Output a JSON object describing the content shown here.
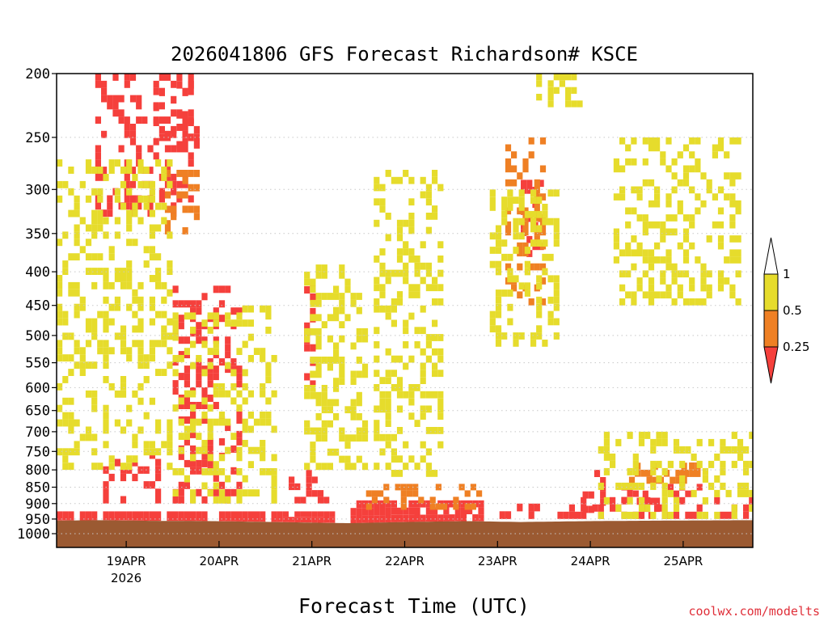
{
  "chart_data": {
    "type": "heatmap",
    "title": "2026041806 GFS Forecast Richardson# KSCE",
    "xlabel": "Forecast Time (UTC)",
    "ylabel": "",
    "credit": "coolwx.com/modelts",
    "y_axis": {
      "scale": "log-pressure",
      "reversed": true,
      "ylim": [
        1000,
        200
      ],
      "ticks": [
        "200",
        "250",
        "300",
        "350",
        "400",
        "450",
        "500",
        "550",
        "600",
        "650",
        "700",
        "750",
        "800",
        "850",
        "900",
        "950",
        "1000"
      ]
    },
    "x_axis": {
      "range_hours": [
        0,
        180
      ],
      "ticks": [
        {
          "label": "19APR",
          "sublabel": "2026",
          "hour": 18
        },
        {
          "label": "20APR",
          "sublabel": "",
          "hour": 42
        },
        {
          "label": "21APR",
          "sublabel": "",
          "hour": 66
        },
        {
          "label": "22APR",
          "sublabel": "",
          "hour": 90
        },
        {
          "label": "23APR",
          "sublabel": "",
          "hour": 114
        },
        {
          "label": "24APR",
          "sublabel": "",
          "hour": 138
        },
        {
          "label": "25APR",
          "sublabel": "",
          "hour": 162
        }
      ]
    },
    "grid": "dotted horizontal at pressure levels",
    "colorbar": {
      "placement": "right",
      "colors": {
        "low": "#f5403c",
        "mid": "#ef8024",
        "high": "#e6dc2c",
        "ground": "#9b5a32"
      },
      "labels": [
        "1",
        "0.5",
        "0.25"
      ],
      "bins": [
        {
          "range": "< 0.25",
          "color": "#f5403c"
        },
        {
          "range": "0.25 - 0.5",
          "color": "#ef8024"
        },
        {
          "range": "0.5 - 1",
          "color": "#e6dc2c"
        },
        {
          "range": "> 1",
          "color": "#ffffff"
        }
      ]
    },
    "surface_pressure_hpa": [
      {
        "hour": 0,
        "p": 955
      },
      {
        "hour": 12,
        "p": 954
      },
      {
        "hour": 24,
        "p": 956
      },
      {
        "hour": 40,
        "p": 957
      },
      {
        "hour": 56,
        "p": 960
      },
      {
        "hour": 70,
        "p": 963
      },
      {
        "hour": 76,
        "p": 964
      },
      {
        "hour": 90,
        "p": 960
      },
      {
        "hour": 106,
        "p": 957
      },
      {
        "hour": 120,
        "p": 960
      },
      {
        "hour": 138,
        "p": 957
      },
      {
        "hour": 160,
        "p": 955
      },
      {
        "hour": 180,
        "p": 954
      }
    ],
    "regions": [
      {
        "level": "low",
        "h0": 0,
        "h1": 72,
        "p_top": 925,
        "p_bot": "sfc"
      },
      {
        "level": "low",
        "h0": 76,
        "h1": 110,
        "p_top": 890,
        "p_bot": "sfc"
      },
      {
        "level": "low",
        "h0": 110,
        "h1": 125,
        "p_top": 900,
        "p_bot": 950
      },
      {
        "level": "low",
        "h0": 128,
        "h1": 180,
        "p_top": 880,
        "p_bot": 950
      },
      {
        "level": "low",
        "h0": 10,
        "h1": 35,
        "p_top": 200,
        "p_bot": 330
      },
      {
        "level": "low",
        "h0": 25,
        "h1": 36,
        "p_top": 200,
        "p_bot": 260
      },
      {
        "level": "low",
        "h0": 30,
        "h1": 48,
        "p_top": 420,
        "p_bot": 900
      },
      {
        "level": "low",
        "h0": 64,
        "h1": 66,
        "p_top": 390,
        "p_bot": 600
      },
      {
        "level": "low",
        "h0": 12,
        "h1": 26,
        "p_top": 750,
        "p_bot": 900
      },
      {
        "level": "low",
        "h0": 60,
        "h1": 70,
        "p_top": 800,
        "p_bot": 900
      },
      {
        "level": "low",
        "h0": 120,
        "h1": 126,
        "p_top": 290,
        "p_bot": 380
      },
      {
        "level": "low",
        "h0": 136,
        "h1": 142,
        "p_top": 800,
        "p_bot": 930
      },
      {
        "level": "low",
        "h0": 146,
        "h1": 150,
        "p_top": 840,
        "p_bot": 900
      },
      {
        "level": "low",
        "h0": 150,
        "h1": 158,
        "p_top": 860,
        "p_bot": 950
      },
      {
        "level": "low",
        "h0": 158,
        "h1": 166,
        "p_top": 840,
        "p_bot": 880
      },
      {
        "level": "mid",
        "h0": 28,
        "h1": 36,
        "p_top": 280,
        "p_bot": 360
      },
      {
        "level": "mid",
        "h0": 116,
        "h1": 126,
        "p_top": 250,
        "p_bot": 450
      },
      {
        "level": "mid",
        "h0": 148,
        "h1": 166,
        "p_top": 780,
        "p_bot": 840
      },
      {
        "level": "mid",
        "h0": 80,
        "h1": 110,
        "p_top": 840,
        "p_bot": 920
      },
      {
        "level": "mid",
        "h0": 162,
        "h1": 166,
        "p_top": 760,
        "p_bot": 820
      },
      {
        "level": "high",
        "h0": 0,
        "h1": 30,
        "p_top": 270,
        "p_bot": 800
      },
      {
        "level": "high",
        "h0": 30,
        "h1": 56,
        "p_top": 450,
        "p_bot": 900
      },
      {
        "level": "high",
        "h0": 64,
        "h1": 80,
        "p_top": 390,
        "p_bot": 800
      },
      {
        "level": "high",
        "h0": 82,
        "h1": 100,
        "p_top": 280,
        "p_bot": 820
      },
      {
        "level": "high",
        "h0": 112,
        "h1": 130,
        "p_top": 300,
        "p_bot": 520
      },
      {
        "level": "high",
        "h0": 124,
        "h1": 136,
        "p_top": 200,
        "p_bot": 225
      },
      {
        "level": "high",
        "h0": 144,
        "h1": 176,
        "p_top": 250,
        "p_bot": 450
      },
      {
        "level": "high",
        "h0": 140,
        "h1": 180,
        "p_top": 700,
        "p_bot": 950
      }
    ]
  }
}
